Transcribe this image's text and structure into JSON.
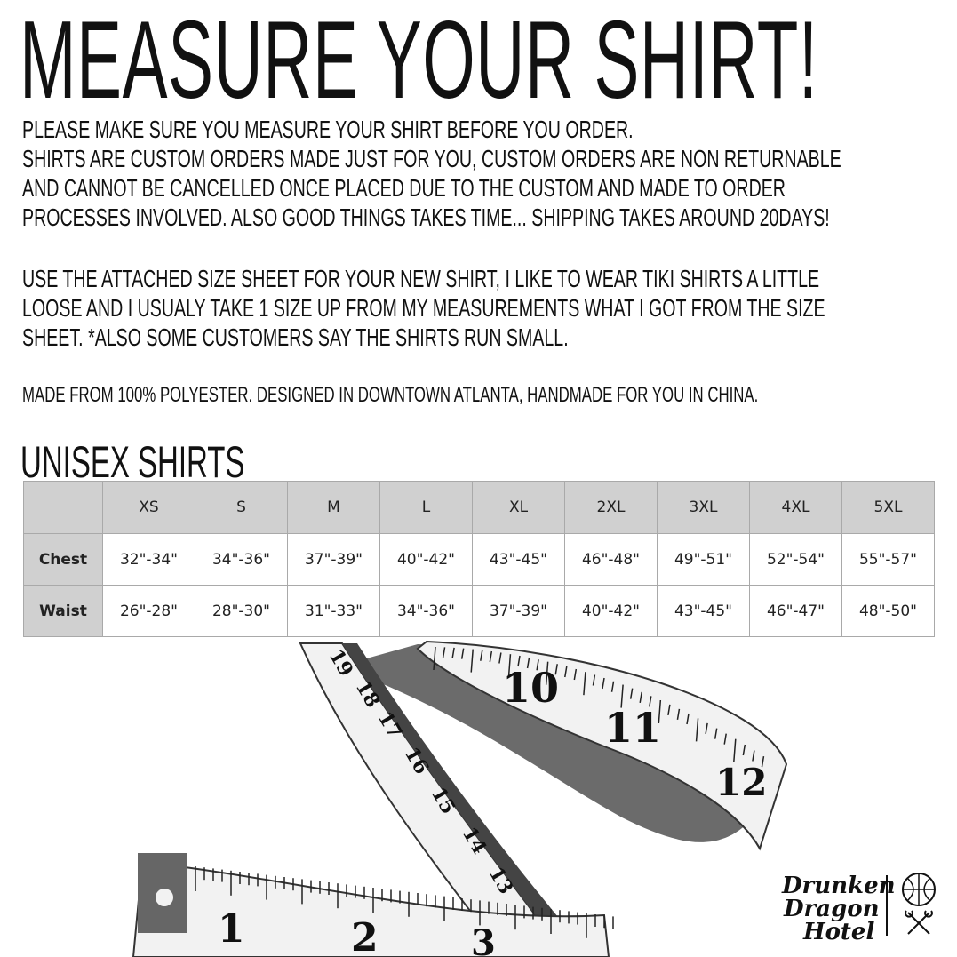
{
  "title": "MEASURE YOUR SHIRT!",
  "paragraph1": [
    "PLEASE MAKE SURE YOU MEASURE YOUR SHIRT BEFORE YOU ORDER.",
    "SHIRTS ARE CUSTOM ORDERS MADE JUST FOR YOU, CUSTOM ORDERS ARE NON RETURNABLE",
    "AND CANNOT BE CANCELLED ONCE PLACED DUE TO THE CUSTOM AND MADE TO ORDER",
    "PROCESSES INVOLVED. ALSO GOOD THINGS TAKES TIME... SHIPPING TAKES AROUND 20DAYS!"
  ],
  "paragraph2": [
    "USE THE ATTACHED SIZE SHEET FOR YOUR NEW SHIRT, I LIKE TO WEAR TIKI SHIRTS A LITTLE",
    "LOOSE AND I USUALY TAKE 1 SIZE UP FROM MY MEASUREMENTS WHAT I GOT FROM THE SIZE",
    "SHEET. *ALSO SOME CUSTOMERS SAY THE SHIRTS RUN SMALL."
  ],
  "material": "MADE FROM 100% POLYESTER. DESIGNED IN DOWNTOWN ATLANTA, HANDMADE FOR YOU IN CHINA.",
  "size_chart": {
    "heading": "UNISEX SHIRTS",
    "sizes": [
      "XS",
      "S",
      "M",
      "L",
      "XL",
      "2XL",
      "3XL",
      "4XL",
      "5XL"
    ],
    "rows": [
      {
        "label": "Chest",
        "values": [
          "32\"-34\"",
          "34\"-36\"",
          "37\"-39\"",
          "40\"-42\"",
          "43\"-45\"",
          "46\"-48\"",
          "49\"-51\"",
          "52\"-54\"",
          "55\"-57\""
        ]
      },
      {
        "label": "Waist",
        "values": [
          "26\"-28\"",
          "28\"-30\"",
          "31\"-33\"",
          "34\"-36\"",
          "37\"-39\"",
          "40\"-42\"",
          "43\"-45\"",
          "46\"-47\"",
          "48\"-50\""
        ]
      }
    ],
    "header_bg": "#d0d0d0"
  },
  "tape_numbers": [
    "1",
    "2",
    "3",
    "10",
    "11",
    "12",
    "13",
    "14",
    "15",
    "16",
    "17",
    "18",
    "19"
  ],
  "logo": {
    "text": "Drunken Dragon Hotel"
  }
}
